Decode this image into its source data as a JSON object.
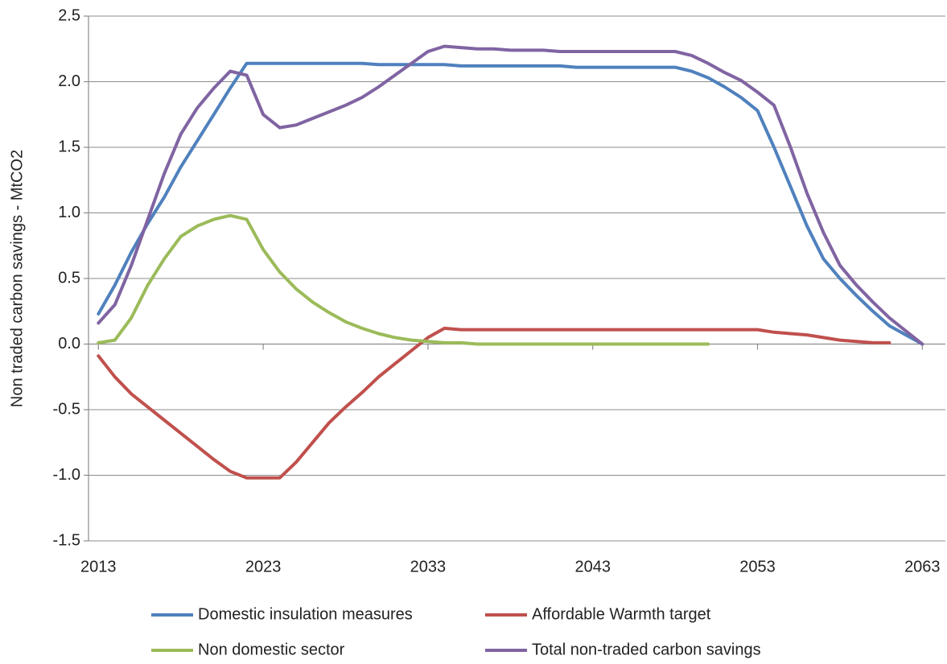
{
  "chart_data": {
    "type": "line",
    "y_label": "Non traded carbon savings - MtCO2",
    "x": [
      2013,
      2014,
      2015,
      2016,
      2017,
      2018,
      2019,
      2020,
      2021,
      2022,
      2023,
      2024,
      2025,
      2026,
      2027,
      2028,
      2029,
      2030,
      2031,
      2032,
      2033,
      2034,
      2035,
      2036,
      2037,
      2038,
      2039,
      2040,
      2041,
      2042,
      2043,
      2044,
      2045,
      2046,
      2047,
      2048,
      2049,
      2050,
      2051,
      2052,
      2053,
      2054,
      2055,
      2056,
      2057,
      2058,
      2059,
      2060,
      2061,
      2062,
      2063
    ],
    "series": [
      {
        "name": "Domestic insulation measures",
        "color": "#4f81bd",
        "values": [
          0.23,
          0.45,
          0.7,
          0.92,
          1.12,
          1.35,
          1.55,
          1.75,
          1.95,
          2.14,
          2.14,
          2.14,
          2.14,
          2.14,
          2.14,
          2.14,
          2.14,
          2.13,
          2.13,
          2.13,
          2.13,
          2.13,
          2.12,
          2.12,
          2.12,
          2.12,
          2.12,
          2.12,
          2.12,
          2.11,
          2.11,
          2.11,
          2.11,
          2.11,
          2.11,
          2.11,
          2.08,
          2.03,
          1.96,
          1.88,
          1.78,
          1.5,
          1.2,
          0.9,
          0.65,
          0.5,
          0.37,
          0.25,
          0.14,
          0.07,
          0.0
        ]
      },
      {
        "name": "Affordable Warmth target",
        "color": "#c0504d",
        "values": [
          -0.09,
          -0.25,
          -0.38,
          -0.48,
          -0.58,
          -0.68,
          -0.78,
          -0.88,
          -0.97,
          -1.02,
          -1.02,
          -1.02,
          -0.9,
          -0.75,
          -0.6,
          -0.48,
          -0.37,
          -0.25,
          -0.15,
          -0.05,
          0.05,
          0.12,
          0.11,
          0.11,
          0.11,
          0.11,
          0.11,
          0.11,
          0.11,
          0.11,
          0.11,
          0.11,
          0.11,
          0.11,
          0.11,
          0.11,
          0.11,
          0.11,
          0.11,
          0.11,
          0.11,
          0.09,
          0.08,
          0.07,
          0.05,
          0.03,
          0.02,
          0.01,
          0.01,
          null,
          null
        ]
      },
      {
        "name": "Non domestic sector",
        "color": "#9bbb59",
        "values": [
          0.01,
          0.03,
          0.2,
          0.45,
          0.65,
          0.82,
          0.9,
          0.95,
          0.98,
          0.95,
          0.72,
          0.55,
          0.42,
          0.32,
          0.24,
          0.17,
          0.12,
          0.08,
          0.05,
          0.03,
          0.02,
          0.01,
          0.01,
          0,
          0,
          0,
          0,
          0,
          0,
          0,
          0,
          0,
          0,
          0,
          0,
          0,
          0,
          0,
          null,
          null,
          null,
          null,
          null,
          null,
          null,
          null,
          null,
          null,
          null,
          null,
          null
        ]
      },
      {
        "name": "Total non-traded carbon savings",
        "color": "#8064a2",
        "values": [
          0.16,
          0.3,
          0.6,
          0.95,
          1.3,
          1.6,
          1.8,
          1.95,
          2.08,
          2.05,
          1.75,
          1.65,
          1.67,
          1.72,
          1.77,
          1.82,
          1.88,
          1.96,
          2.05,
          2.14,
          2.23,
          2.27,
          2.26,
          2.25,
          2.25,
          2.24,
          2.24,
          2.24,
          2.23,
          2.23,
          2.23,
          2.23,
          2.23,
          2.23,
          2.23,
          2.23,
          2.2,
          2.14,
          2.07,
          2.01,
          1.92,
          1.82,
          1.5,
          1.15,
          0.85,
          0.6,
          0.45,
          0.32,
          0.2,
          0.1,
          0.0
        ]
      }
    ],
    "xlim": [
      2012.4,
      2064.4
    ],
    "xticks": [
      2013,
      2023,
      2033,
      2043,
      2053,
      2063
    ],
    "ylim": [
      -1.5,
      2.5
    ],
    "yticks": [
      2.5,
      {
        "value": 2.0,
        "label": "2.0"
      },
      1.5,
      {
        "value": 1.0,
        "label": "1.0"
      },
      0.5,
      {
        "value": 0.0,
        "label": "0.0"
      },
      -0.5,
      {
        "value": -1.0,
        "label": "-1.0"
      },
      -1.5
    ],
    "grid": true,
    "legend": "bottom"
  }
}
